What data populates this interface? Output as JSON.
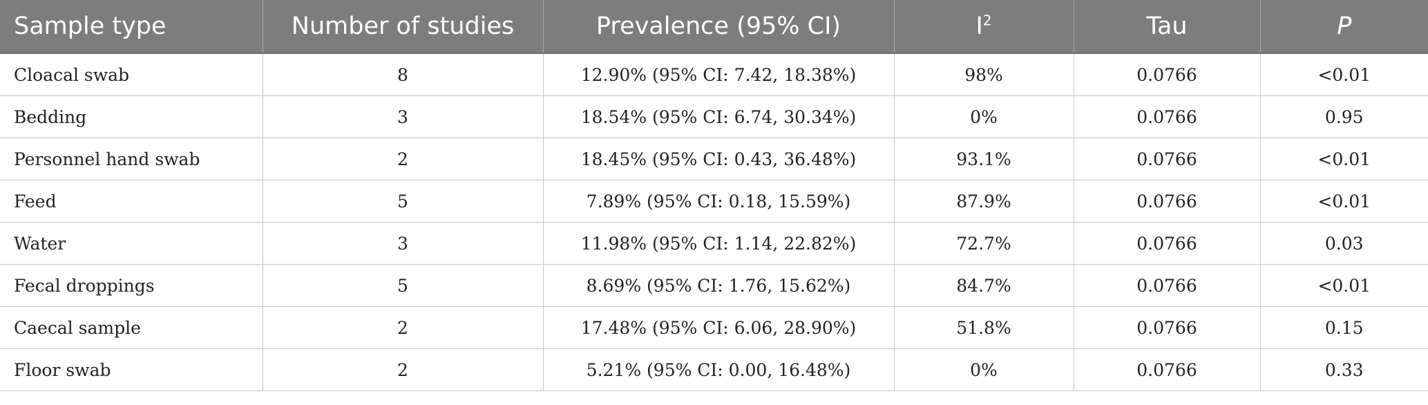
{
  "table": {
    "headers": {
      "sample_type": "Sample type",
      "number_of_studies": "Number of studies",
      "prevalence": "Prevalence (95% CI)",
      "i2_base": "I",
      "i2_sup": "2",
      "tau": "Tau",
      "p": "P"
    },
    "rows": [
      {
        "sample_type": "Cloacal swab",
        "studies": "8",
        "prevalence": "12.90% (95% CI: 7.42, 18.38%)",
        "i2": "98%",
        "tau": "0.0766",
        "p": "<0.01"
      },
      {
        "sample_type": "Bedding",
        "studies": "3",
        "prevalence": "18.54% (95% CI: 6.74, 30.34%)",
        "i2": "0%",
        "tau": "0.0766",
        "p": "0.95"
      },
      {
        "sample_type": "Personnel hand swab",
        "studies": "2",
        "prevalence": "18.45% (95% CI: 0.43, 36.48%)",
        "i2": "93.1%",
        "tau": "0.0766",
        "p": "<0.01"
      },
      {
        "sample_type": "Feed",
        "studies": "5",
        "prevalence": "7.89% (95% CI: 0.18, 15.59%)",
        "i2": "87.9%",
        "tau": "0.0766",
        "p": "<0.01"
      },
      {
        "sample_type": "Water",
        "studies": "3",
        "prevalence": "11.98% (95% CI: 1.14, 22.82%)",
        "i2": "72.7%",
        "tau": "0.0766",
        "p": "0.03"
      },
      {
        "sample_type": "Fecal droppings",
        "studies": "5",
        "prevalence": "8.69% (95% CI: 1.76, 15.62%)",
        "i2": "84.7%",
        "tau": "0.0766",
        "p": "<0.01"
      },
      {
        "sample_type": "Caecal sample",
        "studies": "2",
        "prevalence": "17.48% (95% CI: 6.06, 28.90%)",
        "i2": "51.8%",
        "tau": "0.0766",
        "p": "0.15"
      },
      {
        "sample_type": "Floor swab",
        "studies": "2",
        "prevalence": "5.21% (95% CI: 0.00, 16.48%)",
        "i2": "0%",
        "tau": "0.0766",
        "p": "0.33"
      }
    ]
  }
}
